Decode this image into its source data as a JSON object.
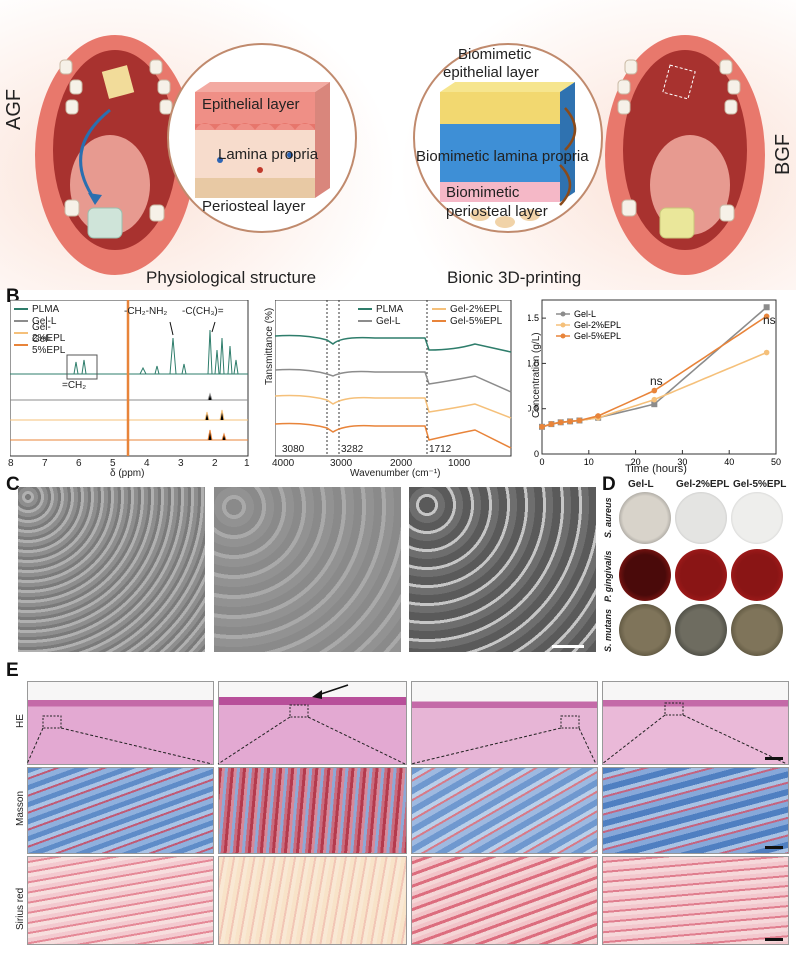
{
  "panels": {
    "A": "A",
    "B": "B",
    "C": "C",
    "D": "D",
    "E": "E"
  },
  "panelA": {
    "left_side_label": "AGF",
    "right_side_label": "BGF",
    "left_layers": [
      "Epithelial layer",
      "Lamina propria",
      "Periosteal layer"
    ],
    "right_layers": [
      "Biomimetic",
      "epithelial layer",
      "Biomimetic lamina propria",
      "Biomimetic",
      "periosteal layer"
    ],
    "left_caption": "Physiological structure",
    "right_caption": "Bionic 3D-printing"
  },
  "nmr": {
    "legend": [
      "PLMA",
      "Gel-L",
      "Gel-2%EPL",
      "Gel-5%EPL"
    ],
    "colors": [
      "#2e7d6b",
      "#8c8c8c",
      "#f5c07a",
      "#e8843a"
    ],
    "annot1": "-CH₂-NH₂",
    "annot2": "-C(CH₃)=",
    "annot3": "=CH₂",
    "xticks": [
      "8",
      "7",
      "6",
      "5",
      "4",
      "3",
      "2",
      "1"
    ],
    "xlabel": "δ (ppm)"
  },
  "ftir": {
    "legend": [
      "PLMA",
      "Gel-L",
      "Gel-2%EPL",
      "Gel-5%EPL"
    ],
    "ylabel": "Tansmittance (%)",
    "xlabel": "Wavenumber (cm⁻¹)",
    "xticks": [
      "4000",
      "3000",
      "2000",
      "1000"
    ],
    "peaks": [
      "3080",
      "3282",
      "1712"
    ]
  },
  "chart_data": {
    "type": "line",
    "xlabel": "Time (hours)",
    "ylabel": "Concentration (g/L)",
    "xlim": [
      0,
      50
    ],
    "ylim": [
      0,
      1.7
    ],
    "xticks": [
      0,
      10,
      20,
      30,
      40,
      50
    ],
    "yticks": [
      0,
      0.5,
      1.0,
      1.5
    ],
    "series": [
      {
        "name": "Gel-L",
        "color": "#8c8c8c",
        "x": [
          0,
          2,
          4,
          6,
          8,
          12,
          24,
          48
        ],
        "y": [
          0.3,
          0.33,
          0.35,
          0.36,
          0.37,
          0.4,
          0.55,
          1.62
        ]
      },
      {
        "name": "Gel-2%EPL",
        "color": "#f5c07a",
        "x": [
          0,
          2,
          4,
          6,
          8,
          12,
          24,
          48
        ],
        "y": [
          0.3,
          0.33,
          0.35,
          0.36,
          0.37,
          0.4,
          0.6,
          1.12
        ]
      },
      {
        "name": "Gel-5%EPL",
        "color": "#e8843a",
        "x": [
          0,
          2,
          4,
          6,
          8,
          12,
          24,
          48
        ],
        "y": [
          0.3,
          0.33,
          0.35,
          0.36,
          0.37,
          0.42,
          0.7,
          1.52
        ]
      }
    ],
    "annotations": [
      "ns",
      "ns"
    ],
    "yticklabels": [
      "0",
      "0.5",
      "1.0",
      "1.5"
    ]
  },
  "panelD": {
    "columns": [
      "Gel-L",
      "Gel-2%EPL",
      "Gel-5%EPL"
    ],
    "rows": [
      "S. aureus",
      "P. gingivalis",
      "S. mutans"
    ]
  },
  "panelE": {
    "rows": [
      "HE",
      "Masson",
      "Sirius red"
    ]
  }
}
